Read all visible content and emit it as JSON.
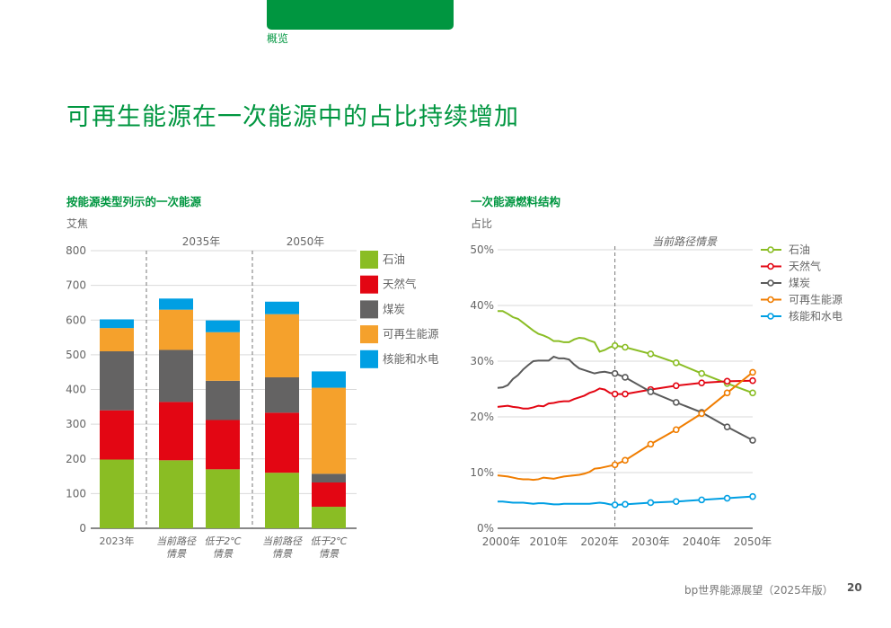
{
  "header": {
    "section": "概览",
    "title": "可再生能源在一次能源中的占比持续增加"
  },
  "footer": {
    "source": "bp世界能源展望（2025年版）",
    "page": "20"
  },
  "chart_data": [
    {
      "type": "bar",
      "stacked": true,
      "title": "按能源类型列示的一次能源",
      "ylabel": "艾焦",
      "ylim": [
        0,
        800
      ],
      "yticks": [
        "0",
        "100",
        "200",
        "300",
        "400",
        "500",
        "600",
        "700",
        "800"
      ],
      "groups": [
        {
          "label": "",
          "categories": [
            "2023年"
          ]
        },
        {
          "label": "2035年",
          "categories": [
            "当前路径情景",
            "低于2℃情景"
          ]
        },
        {
          "label": "2050年",
          "categories": [
            "当前路径情景",
            "低于2℃情景"
          ]
        }
      ],
      "categories": [
        {
          "line1": "2023年",
          "line2": ""
        },
        {
          "line1": "当前路径",
          "line2": "情景"
        },
        {
          "line1": "低于2℃",
          "line2": "情景"
        },
        {
          "line1": "当前路径",
          "line2": "情景"
        },
        {
          "line1": "低于2℃",
          "line2": "情景"
        }
      ],
      "series": [
        {
          "name": "石油",
          "color": "#8abd24",
          "values": [
            198,
            196,
            170,
            160,
            62
          ]
        },
        {
          "name": "天然气",
          "color": "#e30613",
          "values": [
            142,
            168,
            142,
            173,
            70
          ]
        },
        {
          "name": "煤炭",
          "color": "#646363",
          "values": [
            170,
            150,
            113,
            102,
            25
          ]
        },
        {
          "name": "可再生能源",
          "color": "#f5a12c",
          "values": [
            67,
            116,
            140,
            182,
            248
          ]
        },
        {
          "name": "核能和水电",
          "color": "#009fe3",
          "values": [
            25,
            32,
            34,
            36,
            47
          ]
        }
      ],
      "legend": "right"
    },
    {
      "type": "line",
      "title": "一次能源燃料结构",
      "ylabel": "占比",
      "ylim": [
        0,
        50
      ],
      "xlim": [
        2000,
        2050
      ],
      "yticks": [
        "0%",
        "10%",
        "20%",
        "30%",
        "40%",
        "50%"
      ],
      "xticks": [
        "2000年",
        "2010年",
        "2020年",
        "2030年",
        "2040年",
        "2050年"
      ],
      "annotation": "当前路径情景",
      "divider_year": 2023,
      "history_years": [
        2000,
        2001,
        2002,
        2003,
        2004,
        2005,
        2006,
        2007,
        2008,
        2009,
        2010,
        2011,
        2012,
        2013,
        2014,
        2015,
        2016,
        2017,
        2018,
        2019,
        2020,
        2021,
        2022,
        2023
      ],
      "projection_years": [
        2023,
        2025,
        2030,
        2035,
        2040,
        2045,
        2050
      ],
      "series": [
        {
          "name": "石油",
          "color": "#8abd24",
          "history": [
            39,
            39,
            38.5,
            37.9,
            37.6,
            36.9,
            36.2,
            35.5,
            34.9,
            34.6,
            34.2,
            33.6,
            33.6,
            33.4,
            33.4,
            33.9,
            34.2,
            34.1,
            33.7,
            33.4,
            31.7,
            32.0,
            32.5,
            32.8
          ],
          "projection": [
            32.8,
            32.5,
            31.3,
            29.7,
            27.8,
            26.0,
            24.3
          ]
        },
        {
          "name": "天然气",
          "color": "#e30613",
          "history": [
            21.8,
            21.9,
            22.0,
            21.8,
            21.7,
            21.5,
            21.5,
            21.7,
            22.0,
            21.9,
            22.4,
            22.5,
            22.7,
            22.8,
            22.8,
            23.2,
            23.5,
            23.8,
            24.3,
            24.6,
            25.1,
            24.9,
            24.3,
            24.1
          ],
          "projection": [
            24.1,
            24.1,
            24.9,
            25.6,
            26.1,
            26.4,
            26.5
          ]
        },
        {
          "name": "煤炭",
          "color": "#5a5a5a",
          "history": [
            25.2,
            25.3,
            25.7,
            26.8,
            27.5,
            28.5,
            29.3,
            30.0,
            30.1,
            30.1,
            30.1,
            30.8,
            30.5,
            30.5,
            30.3,
            29.4,
            28.7,
            28.4,
            28.1,
            27.8,
            28.0,
            28.1,
            27.9,
            27.8
          ],
          "projection": [
            27.8,
            27.1,
            24.5,
            22.6,
            20.8,
            18.2,
            15.8
          ]
        },
        {
          "name": "可再生能源",
          "color": "#f07d00",
          "history": [
            9.5,
            9.4,
            9.3,
            9.1,
            8.9,
            8.8,
            8.8,
            8.7,
            8.8,
            9.1,
            9.0,
            8.9,
            9.1,
            9.3,
            9.4,
            9.5,
            9.6,
            9.8,
            10.1,
            10.7,
            10.8,
            11.0,
            11.2,
            11.4
          ],
          "projection": [
            11.4,
            12.2,
            15.1,
            17.7,
            20.6,
            24.3,
            28.0
          ]
        },
        {
          "name": "核能和水电",
          "color": "#009fe3",
          "history": [
            4.8,
            4.8,
            4.7,
            4.6,
            4.6,
            4.6,
            4.5,
            4.4,
            4.5,
            4.5,
            4.4,
            4.3,
            4.3,
            4.4,
            4.4,
            4.4,
            4.4,
            4.4,
            4.4,
            4.5,
            4.6,
            4.5,
            4.3,
            4.2
          ],
          "projection": [
            4.2,
            4.3,
            4.6,
            4.8,
            5.1,
            5.4,
            5.7
          ]
        }
      ],
      "legend": "right"
    }
  ]
}
